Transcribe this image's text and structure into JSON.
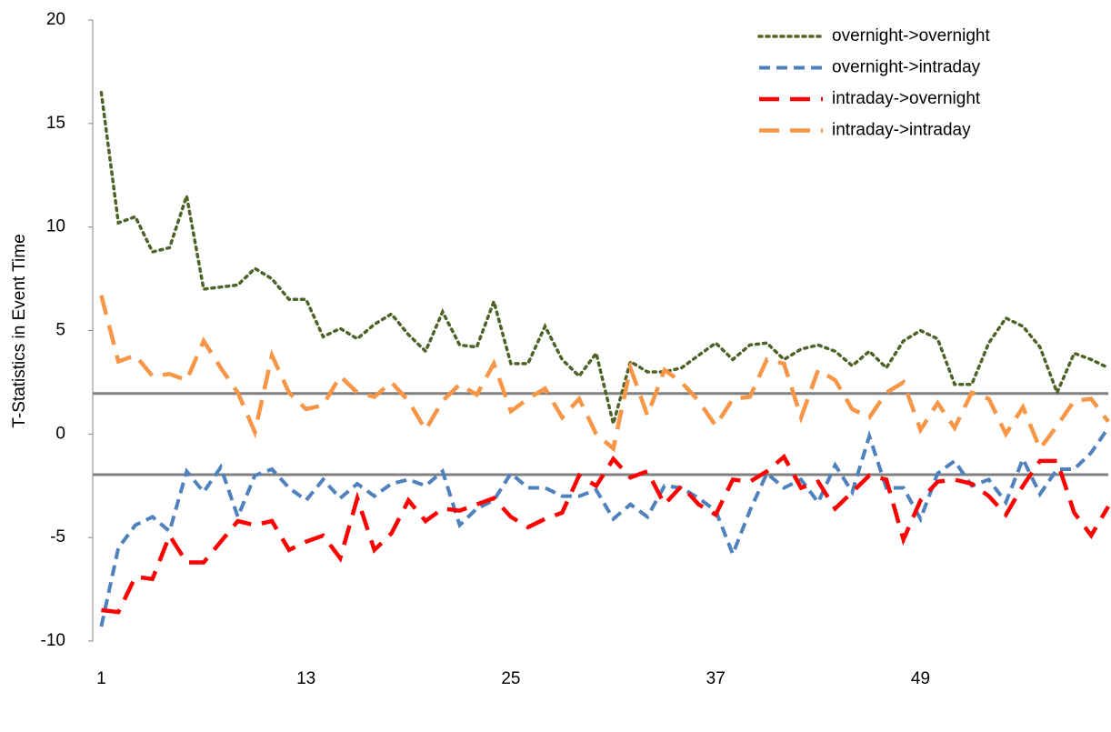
{
  "chart_data": {
    "type": "line",
    "y_label": "T-Statistics in Event Time",
    "x": [
      1,
      2,
      3,
      4,
      5,
      6,
      7,
      8,
      9,
      10,
      11,
      12,
      13,
      14,
      15,
      16,
      17,
      18,
      19,
      20,
      21,
      22,
      23,
      24,
      25,
      26,
      27,
      28,
      29,
      30,
      31,
      32,
      33,
      34,
      35,
      36,
      37,
      38,
      39,
      40,
      41,
      42,
      43,
      44,
      45,
      46,
      47,
      48,
      49,
      50,
      51,
      52,
      53,
      54,
      55,
      56,
      57,
      58,
      59,
      60
    ],
    "xlim": [
      0.5,
      60
    ],
    "xticks": [
      1,
      13,
      25,
      37,
      49
    ],
    "ylim": [
      -10,
      20
    ],
    "yticks": [
      -10,
      -5,
      0,
      5,
      10,
      15,
      20
    ],
    "reference_lines": [
      1.96,
      -1.96
    ],
    "reference_color": "#808080",
    "legend": "top-right",
    "series": [
      {
        "name": "overnight->overnight",
        "color": "#4f6228",
        "style": "dotted",
        "values": [
          16.5,
          10.2,
          10.5,
          8.8,
          9,
          11.5,
          7,
          7.1,
          7.2,
          8,
          7.5,
          6.5,
          6.5,
          4.7,
          5.1,
          4.6,
          5.3,
          5.8,
          4.8,
          4,
          5.9,
          4.3,
          4.2,
          6.4,
          3.4,
          3.4,
          5.2,
          3.6,
          2.8,
          3.9,
          0.5,
          3.5,
          3,
          3,
          3.2,
          3.8,
          4.4,
          3.6,
          4.3,
          4.4,
          3.6,
          4.1,
          4.3,
          4,
          3.3,
          4,
          3.2,
          4.5,
          5,
          4.6,
          2.4,
          2.4,
          4.4,
          5.6,
          5.2,
          4.2,
          2,
          3.9,
          3.6,
          3.2
        ]
      },
      {
        "name": "overnight->intraday",
        "color": "#4f81bd",
        "style": "dashed",
        "values": [
          -9.3,
          -5.5,
          -4.4,
          -4,
          -4.7,
          -1.8,
          -2.8,
          -1.6,
          -4,
          -2,
          -1.7,
          -2.6,
          -3.2,
          -2.2,
          -3.1,
          -2.4,
          -3,
          -2.4,
          -2.2,
          -2.5,
          -1.8,
          -4.4,
          -3.6,
          -3.2,
          -1.9,
          -2.6,
          -2.6,
          -3,
          -3,
          -2.7,
          -4.1,
          -3.4,
          -4,
          -2.5,
          -2.6,
          -3.1,
          -3.7,
          -5.8,
          -3.7,
          -1.9,
          -2.6,
          -2.2,
          -3.3,
          -1.5,
          -2.8,
          -0.1,
          -2.6,
          -2.6,
          -4.1,
          -1.9,
          -1.3,
          -2.5,
          -2.2,
          -3.3,
          -1.2,
          -2.9,
          -1.7,
          -1.7,
          -0.9,
          0.3
        ]
      },
      {
        "name": "intraday->overnight",
        "color": "#ff0000",
        "style": "longdash",
        "values": [
          -8.5,
          -8.6,
          -6.9,
          -7,
          -4.9,
          -6.2,
          -6.2,
          -5.2,
          -4.2,
          -4.4,
          -4.2,
          -5.6,
          -5.2,
          -4.9,
          -6,
          -3.1,
          -5.6,
          -4.8,
          -3.2,
          -4.2,
          -3.6,
          -3.7,
          -3.4,
          -3.1,
          -4,
          -4.5,
          -4.1,
          -3.8,
          -2,
          -2.5,
          -1.2,
          -2.1,
          -1.8,
          -3.4,
          -2.5,
          -3.4,
          -3.9,
          -2.2,
          -2.3,
          -1.8,
          -1.1,
          -2.6,
          -2.3,
          -3.6,
          -2.8,
          -2,
          -2.2,
          -5.1,
          -3.2,
          -2.3,
          -2.2,
          -2.4,
          -3,
          -3.9,
          -2.5,
          -1.3,
          -1.3,
          -3.8,
          -4.9,
          -3.5
        ]
      },
      {
        "name": "intraday->intraday",
        "color": "#f79646",
        "style": "longdash",
        "values": [
          6.7,
          3.5,
          3.8,
          2.8,
          2.9,
          2.6,
          4.5,
          3.2,
          2,
          0.1,
          3.8,
          2,
          1.2,
          1.4,
          2.8,
          2,
          1.8,
          2.5,
          1.6,
          0.2,
          1.6,
          2.4,
          1.9,
          3.4,
          1.1,
          1.7,
          2.2,
          0.8,
          1.7,
          0,
          -0.7,
          3.2,
          0.9,
          3.1,
          2.5,
          1.6,
          0.4,
          1.7,
          1.8,
          3.6,
          3.4,
          0.8,
          3.1,
          2.6,
          1.2,
          0.8,
          2,
          2.5,
          0.2,
          1.5,
          0.3,
          2,
          1.7,
          0,
          1.3,
          -0.7,
          0.4,
          1.6,
          1.7,
          0.6
        ]
      }
    ]
  }
}
